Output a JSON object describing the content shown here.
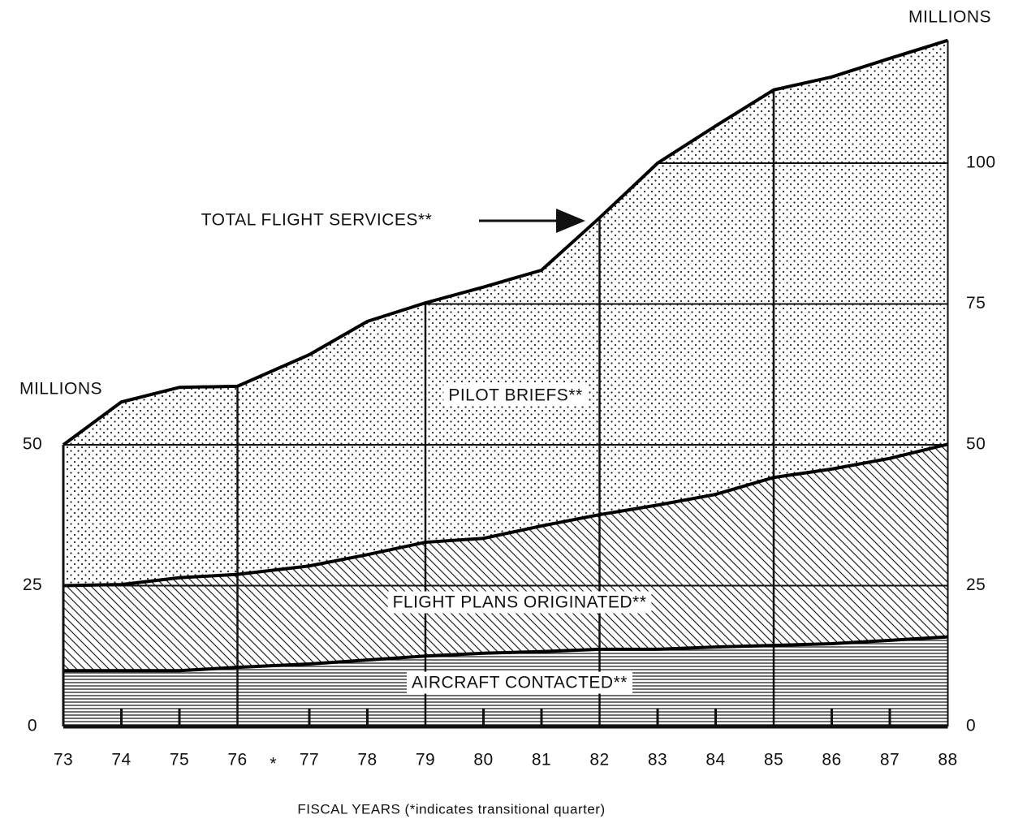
{
  "chart_data": {
    "type": "stacked_area",
    "categories": [
      "73",
      "74",
      "75",
      "76",
      "77",
      "78",
      "79",
      "80",
      "81",
      "82",
      "83",
      "84",
      "85",
      "86",
      "87",
      "88"
    ],
    "transitional_marker": "*",
    "x_axis_label": "FISCAL YEARS (*indicates transitional quarter)",
    "y_axis_label": "MILLIONS",
    "y2_axis_label": "MILLIONS",
    "annotation": "TOTAL FLIGHT SERVICES**",
    "series": [
      {
        "name": "AIRCRAFT CONTACTED**",
        "color": "#000000",
        "pattern": "horizontal",
        "values": [
          9.9,
          9.9,
          9.9,
          10.5,
          11.1,
          11.8,
          12.5,
          13,
          13.3,
          13.7,
          13.7,
          14.1,
          14.4,
          14.7,
          15.3,
          15.9
        ]
      },
      {
        "name": "FLIGHT PLANS ORIGINATED**",
        "color": "#000000",
        "pattern": "diagonal",
        "values": [
          15.1,
          15.3,
          16.5,
          16.5,
          17.4,
          18.7,
          20.2,
          20.4,
          22.3,
          23.9,
          25.6,
          27.1,
          29.8,
          31,
          32.3,
          34.2
        ]
      },
      {
        "name": "PILOT BRIEFS**",
        "color": "#000000",
        "pattern": "dots",
        "values": [
          25,
          32.4,
          33.8,
          33.4,
          37.5,
          41.4,
          42.5,
          44.6,
          45.4,
          52.7,
          60.7,
          65.4,
          68.8,
          69.6,
          71,
          71.7
        ]
      }
    ],
    "ylim": [
      0,
      125
    ],
    "yticks": [
      0,
      25,
      50
    ],
    "y2lim": [
      0,
      125
    ],
    "y2ticks": [
      0,
      25,
      50,
      75,
      100
    ],
    "grid": true,
    "vertical_lines_at": [
      "76",
      "79",
      "82",
      "85"
    ]
  }
}
